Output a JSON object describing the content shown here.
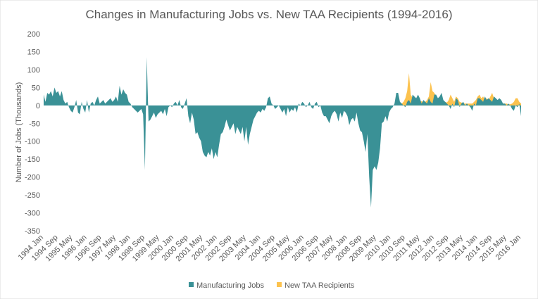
{
  "chart_data": {
    "type": "area",
    "title": "Changes in Manufacturing Jobs vs. New TAA Recipients (1994-2016)",
    "y_label": "Number of Jobs (Thousands)",
    "categories": [
      "1994 Jan",
      null,
      null,
      null,
      null,
      null,
      null,
      null,
      "1994 Sep",
      null,
      null,
      null,
      null,
      null,
      null,
      null,
      "1995 May",
      null,
      null,
      null,
      null,
      null,
      null,
      null,
      "1996 Jan",
      null,
      null,
      null,
      null,
      null,
      null,
      null,
      "1996 Sep",
      null,
      null,
      null,
      null,
      null,
      null,
      null,
      "1997 May",
      null,
      null,
      null,
      null,
      null,
      null,
      null,
      "1998 Jan",
      null,
      null,
      null,
      null,
      null,
      null,
      null,
      "1998 Sep",
      null,
      null,
      null,
      null,
      null,
      null,
      null,
      "1999 May",
      null,
      null,
      null,
      null,
      null,
      null,
      null,
      "2000 Jan",
      null,
      null,
      null,
      null,
      null,
      null,
      null,
      "2000 Sep",
      null,
      null,
      null,
      null,
      null,
      null,
      null,
      "2001 May",
      null,
      null,
      null,
      null,
      null,
      null,
      null,
      "2002 Jan",
      null,
      null,
      null,
      null,
      null,
      null,
      null,
      "2002 Sep",
      null,
      null,
      null,
      null,
      null,
      null,
      null,
      "2003 May",
      null,
      null,
      null,
      null,
      null,
      null,
      null,
      "2004 Jan",
      null,
      null,
      null,
      null,
      null,
      null,
      null,
      "2004 Sep",
      null,
      null,
      null,
      null,
      null,
      null,
      null,
      "2005 May",
      null,
      null,
      null,
      null,
      null,
      null,
      null,
      "2006 Jan",
      null,
      null,
      null,
      null,
      null,
      null,
      null,
      "2006 Sep",
      null,
      null,
      null,
      null,
      null,
      null,
      null,
      "2007 May",
      null,
      null,
      null,
      null,
      null,
      null,
      null,
      "2008 Jan",
      null,
      null,
      null,
      null,
      null,
      null,
      null,
      "2008 Sep",
      null,
      null,
      null,
      null,
      null,
      null,
      null,
      "2009 May",
      null,
      null,
      null,
      null,
      null,
      null,
      null,
      "2010 Jan",
      null,
      null,
      null,
      null,
      null,
      null,
      null,
      "2010 Sep",
      null,
      null,
      null,
      null,
      null,
      null,
      null,
      "2011 May",
      null,
      null,
      null,
      null,
      null,
      null,
      null,
      "2012 Jan",
      null,
      null,
      null,
      null,
      null,
      null,
      null,
      "2012 Sep",
      null,
      null,
      null,
      null,
      null,
      null,
      null,
      "2013 May",
      null,
      null,
      null,
      null,
      null,
      null,
      null,
      "2014 Jan",
      null,
      null,
      null,
      null,
      null,
      null,
      null,
      "2014 Sep",
      null,
      null,
      null,
      null,
      null,
      null,
      null,
      "2015 May",
      null,
      null,
      null,
      null,
      null,
      null,
      null,
      "2016 Jan"
    ],
    "series": [
      {
        "name": "Manufacturing Jobs",
        "color": "#3a9196",
        "values": [
          30,
          10,
          35,
          30,
          40,
          25,
          50,
          35,
          40,
          25,
          40,
          15,
          5,
          10,
          -5,
          -15,
          -20,
          -5,
          15,
          -20,
          -25,
          10,
          -10,
          -20,
          15,
          -20,
          5,
          10,
          0,
          15,
          25,
          5,
          10,
          15,
          5,
          10,
          15,
          20,
          10,
          15,
          25,
          10,
          55,
          30,
          45,
          35,
          30,
          10,
          5,
          -5,
          -10,
          -15,
          -20,
          -15,
          -10,
          -25,
          -180,
          135,
          -45,
          -40,
          -30,
          -20,
          -35,
          -25,
          -20,
          -15,
          -25,
          -10,
          -30,
          -5,
          0,
          -5,
          5,
          10,
          0,
          15,
          -5,
          -10,
          5,
          20,
          -30,
          -50,
          -20,
          -40,
          -80,
          -75,
          -90,
          -100,
          -130,
          -140,
          -145,
          -130,
          -140,
          -120,
          -150,
          -130,
          -145,
          -110,
          -80,
          -75,
          -60,
          -40,
          -55,
          -70,
          -60,
          -50,
          -80,
          -60,
          -70,
          -80,
          -60,
          -100,
          -60,
          -110,
          -80,
          -60,
          -40,
          -30,
          -20,
          -15,
          -20,
          -10,
          -15,
          -5,
          20,
          25,
          5,
          0,
          -10,
          -5,
          0,
          -10,
          -20,
          -10,
          -30,
          -5,
          -20,
          -10,
          -15,
          -5,
          -20,
          5,
          0,
          10,
          5,
          -5,
          0,
          10,
          -5,
          -10,
          5,
          10,
          -5,
          0,
          -20,
          -30,
          -30,
          -40,
          -50,
          -30,
          -20,
          -15,
          -25,
          -45,
          -20,
          -35,
          -15,
          -20,
          -30,
          -55,
          -40,
          -35,
          -45,
          -20,
          -50,
          -70,
          -75,
          -100,
          -130,
          -80,
          -200,
          -285,
          -180,
          -170,
          -180,
          -160,
          -120,
          -50,
          -45,
          -30,
          -45,
          -20,
          -10,
          -5,
          5,
          35,
          35,
          10,
          5,
          0,
          -5,
          10,
          15,
          5,
          30,
          25,
          20,
          30,
          20,
          5,
          15,
          10,
          5,
          20,
          10,
          5,
          30,
          30,
          20,
          25,
          35,
          15,
          10,
          5,
          0,
          -10,
          5,
          -5,
          20,
          15,
          -5,
          5,
          10,
          0,
          5,
          0,
          -5,
          -15,
          5,
          0,
          20,
          20,
          15,
          10,
          25,
          15,
          20,
          15,
          10,
          25,
          20,
          15,
          20,
          15,
          5,
          5,
          0,
          5,
          0,
          -10,
          -15,
          0,
          -5,
          5,
          -30
        ]
      },
      {
        "name": "New TAA Recipients",
        "color": "#fcc24e",
        "values": [
          null,
          null,
          null,
          null,
          null,
          null,
          null,
          null,
          null,
          null,
          null,
          null,
          null,
          null,
          null,
          null,
          null,
          null,
          null,
          null,
          null,
          null,
          null,
          null,
          null,
          null,
          null,
          null,
          null,
          null,
          null,
          null,
          null,
          null,
          null,
          null,
          null,
          null,
          null,
          null,
          null,
          null,
          null,
          null,
          null,
          null,
          null,
          null,
          null,
          null,
          null,
          null,
          null,
          null,
          null,
          null,
          null,
          null,
          null,
          null,
          null,
          null,
          null,
          null,
          null,
          null,
          null,
          null,
          null,
          null,
          null,
          null,
          null,
          null,
          null,
          null,
          null,
          null,
          null,
          null,
          null,
          null,
          null,
          null,
          null,
          null,
          null,
          null,
          null,
          null,
          null,
          null,
          null,
          null,
          null,
          null,
          null,
          null,
          null,
          null,
          null,
          null,
          null,
          null,
          null,
          null,
          null,
          null,
          null,
          null,
          null,
          null,
          null,
          null,
          null,
          null,
          null,
          null,
          null,
          null,
          null,
          null,
          null,
          null,
          null,
          null,
          null,
          null,
          null,
          null,
          null,
          null,
          null,
          null,
          null,
          null,
          null,
          null,
          null,
          null,
          null,
          null,
          null,
          null,
          null,
          null,
          null,
          null,
          null,
          null,
          null,
          null,
          null,
          null,
          null,
          null,
          null,
          null,
          null,
          null,
          null,
          null,
          null,
          null,
          null,
          null,
          null,
          null,
          null,
          null,
          null,
          null,
          null,
          null,
          null,
          null,
          null,
          null,
          null,
          null,
          null,
          null,
          null,
          null,
          null,
          null,
          null,
          null,
          null,
          null,
          null,
          null,
          null,
          null,
          null,
          null,
          null,
          null,
          5,
          10,
          20,
          40,
          90,
          30,
          20,
          15,
          10,
          15,
          10,
          12,
          8,
          10,
          15,
          25,
          65,
          40,
          35,
          25,
          20,
          15,
          10,
          8,
          10,
          8,
          15,
          30,
          20,
          10,
          25,
          20,
          10,
          8,
          5,
          5,
          5,
          5,
          5,
          5,
          10,
          15,
          25,
          30,
          20,
          25,
          15,
          20,
          15,
          25,
          35,
          20,
          15,
          10,
          10,
          8,
          5,
          5,
          5,
          3,
          3,
          5,
          10,
          20,
          20,
          10,
          5
        ]
      }
    ],
    "ylim": [
      -350,
      200
    ],
    "yticks": [
      200,
      150,
      100,
      50,
      0,
      -50,
      -100,
      -150,
      -200,
      -250,
      -300,
      -350
    ],
    "legend": "bottom"
  }
}
